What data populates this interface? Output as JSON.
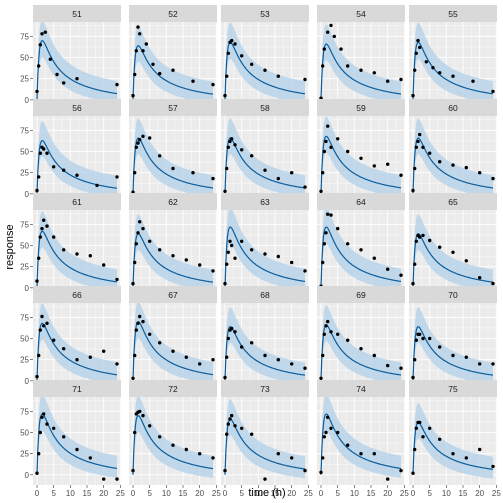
{
  "chart_data": {
    "type": "scatter",
    "xlabel": "time (h)",
    "ylabel": "response",
    "x_ticks": [
      0,
      5,
      10,
      15,
      20,
      25
    ],
    "y_ticks": [
      0,
      25,
      50,
      75
    ],
    "xlim": [
      -1.2,
      25.2
    ],
    "ylim": [
      -12,
      92
    ],
    "grid": true,
    "legend": "none",
    "colors": {
      "panel": "#ebebeb",
      "strip": "#d9d9d9",
      "points": "#000000",
      "line": "#0a5c9b",
      "band": "#b9d3ea",
      "grid": "#ffffff"
    },
    "line_shape": {
      "peak_x": 2,
      "decay": [
        0.08,
        0.33
      ],
      "mix": [
        0.45,
        0.55
      ]
    },
    "panels": [
      {
        "id": "51",
        "peak": 70,
        "points": [
          [
            0,
            10
          ],
          [
            0.5,
            40
          ],
          [
            1,
            65
          ],
          [
            1.5,
            78
          ],
          [
            2.5,
            80
          ],
          [
            4,
            48
          ],
          [
            6,
            30
          ],
          [
            8,
            20
          ],
          [
            12,
            25
          ],
          [
            24,
            18
          ]
        ]
      },
      {
        "id": "52",
        "peak": 64,
        "points": [
          [
            0,
            5
          ],
          [
            0.5,
            30
          ],
          [
            1,
            58
          ],
          [
            1.5,
            86
          ],
          [
            2,
            78
          ],
          [
            3,
            58
          ],
          [
            4,
            66
          ],
          [
            6,
            42
          ],
          [
            8,
            31
          ],
          [
            12,
            35
          ],
          [
            18,
            22
          ],
          [
            24,
            18
          ]
        ]
      },
      {
        "id": "53",
        "peak": 68,
        "points": [
          [
            0,
            5
          ],
          [
            0.5,
            28
          ],
          [
            1,
            55
          ],
          [
            1.5,
            68
          ],
          [
            2,
            70
          ],
          [
            3,
            66
          ],
          [
            5,
            52
          ],
          [
            8,
            42
          ],
          [
            12,
            35
          ],
          [
            16,
            28
          ],
          [
            20,
            -2
          ],
          [
            24,
            24
          ]
        ]
      },
      {
        "id": "54",
        "peak": 66,
        "points": [
          [
            0,
            2
          ],
          [
            0.5,
            40
          ],
          [
            1,
            60
          ],
          [
            2,
            80
          ],
          [
            3,
            88
          ],
          [
            4,
            75
          ],
          [
            6,
            60
          ],
          [
            8,
            40
          ],
          [
            12,
            35
          ],
          [
            16,
            32
          ],
          [
            20,
            22
          ],
          [
            24,
            24
          ]
        ]
      },
      {
        "id": "55",
        "peak": 68,
        "points": [
          [
            0,
            5
          ],
          [
            0.5,
            35
          ],
          [
            1,
            55
          ],
          [
            1.5,
            70
          ],
          [
            2,
            62
          ],
          [
            4,
            45
          ],
          [
            6,
            38
          ],
          [
            8,
            32
          ],
          [
            12,
            28
          ],
          [
            18,
            22
          ],
          [
            24,
            10
          ]
        ]
      },
      {
        "id": "56",
        "peak": 63,
        "points": [
          [
            0,
            4
          ],
          [
            0.5,
            20
          ],
          [
            1,
            48
          ],
          [
            1.5,
            55
          ],
          [
            2,
            53
          ],
          [
            3,
            48
          ],
          [
            5,
            32
          ],
          [
            8,
            28
          ],
          [
            12,
            22
          ],
          [
            18,
            10
          ],
          [
            24,
            20
          ]
        ]
      },
      {
        "id": "57",
        "peak": 66,
        "points": [
          [
            0,
            2
          ],
          [
            0.5,
            25
          ],
          [
            1,
            55
          ],
          [
            1.5,
            60
          ],
          [
            2,
            64
          ],
          [
            3,
            68
          ],
          [
            5,
            66
          ],
          [
            8,
            45
          ],
          [
            12,
            30
          ],
          [
            18,
            25
          ],
          [
            24,
            18
          ]
        ]
      },
      {
        "id": "58",
        "peak": 66,
        "points": [
          [
            0,
            3
          ],
          [
            0.5,
            30
          ],
          [
            1,
            55
          ],
          [
            1.5,
            62
          ],
          [
            2,
            65
          ],
          [
            3,
            58
          ],
          [
            5,
            52
          ],
          [
            8,
            45
          ],
          [
            12,
            28
          ],
          [
            16,
            18
          ],
          [
            20,
            25
          ],
          [
            24,
            8
          ]
        ]
      },
      {
        "id": "59",
        "peak": 68,
        "points": [
          [
            0,
            3
          ],
          [
            0.5,
            25
          ],
          [
            1,
            50
          ],
          [
            1.5,
            62
          ],
          [
            2,
            80
          ],
          [
            3,
            55
          ],
          [
            5,
            65
          ],
          [
            8,
            50
          ],
          [
            12,
            42
          ],
          [
            16,
            33
          ],
          [
            20,
            35
          ],
          [
            24,
            22
          ]
        ]
      },
      {
        "id": "60",
        "peak": 66,
        "points": [
          [
            0,
            4
          ],
          [
            0.5,
            30
          ],
          [
            1,
            55
          ],
          [
            1.5,
            62
          ],
          [
            2,
            70
          ],
          [
            3,
            55
          ],
          [
            5,
            48
          ],
          [
            8,
            38
          ],
          [
            12,
            34
          ],
          [
            16,
            31
          ],
          [
            20,
            25
          ],
          [
            24,
            18
          ]
        ]
      },
      {
        "id": "61",
        "peak": 67,
        "points": [
          [
            0,
            8
          ],
          [
            0.5,
            35
          ],
          [
            1,
            60
          ],
          [
            1.5,
            70
          ],
          [
            2,
            80
          ],
          [
            3,
            73
          ],
          [
            5,
            60
          ],
          [
            8,
            45
          ],
          [
            12,
            40
          ],
          [
            16,
            38
          ],
          [
            20,
            27
          ],
          [
            24,
            10
          ]
        ]
      },
      {
        "id": "62",
        "peak": 64,
        "points": [
          [
            0,
            5
          ],
          [
            0.5,
            30
          ],
          [
            1,
            52
          ],
          [
            1.5,
            65
          ],
          [
            2,
            78
          ],
          [
            3,
            70
          ],
          [
            5,
            55
          ],
          [
            8,
            45
          ],
          [
            12,
            38
          ],
          [
            16,
            33
          ],
          [
            20,
            27
          ],
          [
            24,
            20
          ]
        ]
      },
      {
        "id": "63",
        "peak": 72,
        "points": [
          [
            0,
            5
          ],
          [
            0.5,
            28
          ],
          [
            1,
            42
          ],
          [
            1.5,
            55
          ],
          [
            2,
            50
          ],
          [
            3,
            35
          ],
          [
            5,
            55
          ],
          [
            8,
            45
          ],
          [
            12,
            40
          ],
          [
            16,
            37
          ],
          [
            20,
            30
          ],
          [
            24,
            20
          ]
        ]
      },
      {
        "id": "64",
        "peak": 72,
        "points": [
          [
            0,
            2
          ],
          [
            0.5,
            30
          ],
          [
            1,
            52
          ],
          [
            1.5,
            65
          ],
          [
            2,
            87
          ],
          [
            3,
            86
          ],
          [
            5,
            70
          ],
          [
            8,
            52
          ],
          [
            12,
            45
          ],
          [
            16,
            35
          ],
          [
            20,
            22
          ],
          [
            24,
            15
          ]
        ]
      },
      {
        "id": "65",
        "peak": 64,
        "points": [
          [
            0,
            5
          ],
          [
            0.5,
            28
          ],
          [
            1,
            55
          ],
          [
            1.5,
            62
          ],
          [
            2,
            60
          ],
          [
            3,
            62
          ],
          [
            5,
            56
          ],
          [
            8,
            48
          ],
          [
            12,
            42
          ],
          [
            16,
            32
          ],
          [
            20,
            12
          ],
          [
            24,
            5
          ]
        ]
      },
      {
        "id": "66",
        "peak": 68,
        "points": [
          [
            0,
            5
          ],
          [
            0.5,
            30
          ],
          [
            1,
            60
          ],
          [
            1.5,
            76
          ],
          [
            2,
            65
          ],
          [
            3,
            68
          ],
          [
            5,
            48
          ],
          [
            8,
            38
          ],
          [
            12,
            25
          ],
          [
            16,
            28
          ],
          [
            20,
            35
          ],
          [
            24,
            20
          ]
        ]
      },
      {
        "id": "67",
        "peak": 70,
        "points": [
          [
            0,
            3
          ],
          [
            0.5,
            30
          ],
          [
            1,
            60
          ],
          [
            1.5,
            68
          ],
          [
            2,
            76
          ],
          [
            3,
            70
          ],
          [
            5,
            55
          ],
          [
            8,
            45
          ],
          [
            12,
            35
          ],
          [
            16,
            28
          ],
          [
            20,
            20
          ],
          [
            24,
            25
          ]
        ]
      },
      {
        "id": "68",
        "peak": 64,
        "points": [
          [
            0,
            4
          ],
          [
            0.5,
            28
          ],
          [
            1,
            50
          ],
          [
            1.5,
            60
          ],
          [
            2,
            62
          ],
          [
            3,
            58
          ],
          [
            5,
            40
          ],
          [
            8,
            45
          ],
          [
            12,
            30
          ],
          [
            16,
            25
          ],
          [
            20,
            20
          ],
          [
            24,
            15
          ]
        ]
      },
      {
        "id": "69",
        "peak": 66,
        "points": [
          [
            0,
            3
          ],
          [
            0.5,
            30
          ],
          [
            1,
            55
          ],
          [
            1.5,
            65
          ],
          [
            2,
            70
          ],
          [
            3,
            58
          ],
          [
            5,
            55
          ],
          [
            8,
            48
          ],
          [
            12,
            38
          ],
          [
            16,
            30
          ],
          [
            20,
            18
          ],
          [
            24,
            15
          ]
        ]
      },
      {
        "id": "70",
        "peak": 64,
        "points": [
          [
            0,
            4
          ],
          [
            0.5,
            25
          ],
          [
            1,
            48
          ],
          [
            1.5,
            55
          ],
          [
            2,
            55
          ],
          [
            3,
            50
          ],
          [
            5,
            50
          ],
          [
            8,
            40
          ],
          [
            12,
            30
          ],
          [
            16,
            28
          ],
          [
            20,
            20
          ],
          [
            24,
            20
          ]
        ]
      },
      {
        "id": "71",
        "peak": 72,
        "points": [
          [
            0,
            2
          ],
          [
            0.5,
            25
          ],
          [
            1,
            50
          ],
          [
            1.5,
            68
          ],
          [
            2,
            72
          ],
          [
            3,
            60
          ],
          [
            5,
            55
          ],
          [
            8,
            45
          ],
          [
            12,
            30
          ],
          [
            16,
            20
          ],
          [
            20,
            -5
          ],
          [
            24,
            -5
          ]
        ]
      },
      {
        "id": "72",
        "peak": 70,
        "points": [
          [
            0,
            5
          ],
          [
            0.5,
            50
          ],
          [
            1,
            72
          ],
          [
            1.5,
            74
          ],
          [
            2,
            75
          ],
          [
            3,
            70
          ],
          [
            5,
            58
          ],
          [
            8,
            45
          ],
          [
            12,
            35
          ],
          [
            16,
            30
          ],
          [
            20,
            25
          ],
          [
            24,
            20
          ]
        ]
      },
      {
        "id": "73",
        "peak": 66,
        "points": [
          [
            0,
            5
          ],
          [
            0.5,
            48
          ],
          [
            1,
            60
          ],
          [
            1.5,
            66
          ],
          [
            2,
            70
          ],
          [
            3,
            58
          ],
          [
            5,
            55
          ],
          [
            8,
            48
          ],
          [
            12,
            -5
          ],
          [
            16,
            25
          ],
          [
            20,
            20
          ],
          [
            24,
            5
          ]
        ]
      },
      {
        "id": "74",
        "peak": 72,
        "points": [
          [
            0,
            3
          ],
          [
            0.5,
            20
          ],
          [
            1,
            45
          ],
          [
            1.5,
            50
          ],
          [
            2,
            68
          ],
          [
            3,
            55
          ],
          [
            5,
            50
          ],
          [
            8,
            35
          ],
          [
            12,
            25
          ],
          [
            16,
            25
          ],
          [
            20,
            -5
          ],
          [
            24,
            5
          ]
        ]
      },
      {
        "id": "75",
        "peak": 62,
        "points": [
          [
            0,
            2
          ],
          [
            0.5,
            30
          ],
          [
            1,
            55
          ],
          [
            1.5,
            62
          ],
          [
            2,
            62
          ],
          [
            3,
            45
          ],
          [
            5,
            55
          ],
          [
            8,
            42
          ],
          [
            12,
            25
          ],
          [
            16,
            20
          ],
          [
            20,
            30
          ],
          [
            24,
            10
          ]
        ]
      }
    ]
  }
}
